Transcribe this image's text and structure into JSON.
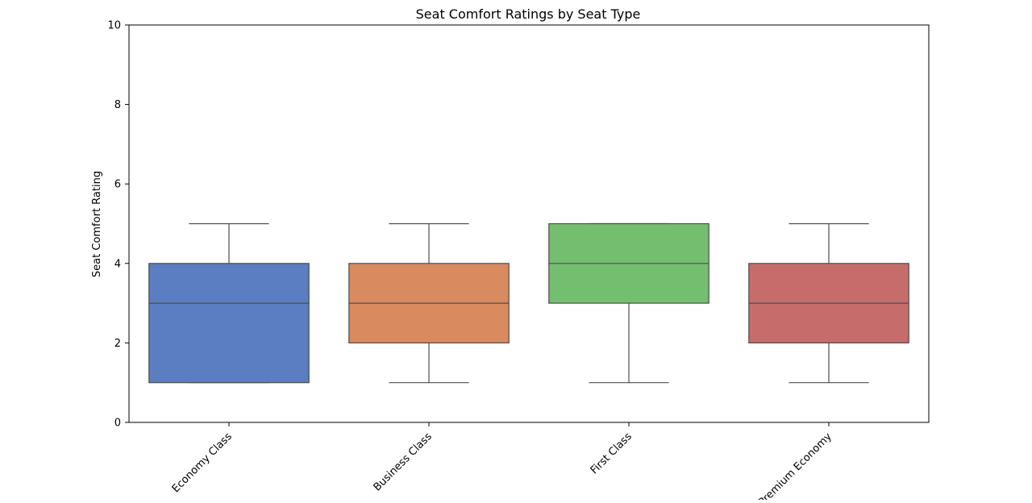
{
  "chart_data": {
    "type": "box",
    "title": "Seat Comfort Ratings by Seat Type",
    "xlabel": "",
    "ylabel": "Seat Comfort Rating",
    "ylim": [
      0,
      10
    ],
    "yticks": [
      0,
      2,
      4,
      6,
      8,
      10
    ],
    "grid": false,
    "categories": [
      "Economy Class",
      "Business Class",
      "First Class",
      "Premium Economy"
    ],
    "boxes": [
      {
        "category": "Economy Class",
        "whisker_low": 1,
        "q1": 1,
        "median": 3,
        "q3": 4,
        "whisker_high": 5,
        "color": "#5a7ec1"
      },
      {
        "category": "Business Class",
        "whisker_low": 1,
        "q1": 2,
        "median": 3,
        "q3": 4,
        "whisker_high": 5,
        "color": "#d98a5e"
      },
      {
        "category": "First Class",
        "whisker_low": 1,
        "q1": 3,
        "median": 4,
        "q3": 5,
        "whisker_high": 5,
        "color": "#74bf6f"
      },
      {
        "category": "Premium Economy",
        "whisker_low": 1,
        "q1": 2,
        "median": 3,
        "q3": 4,
        "whisker_high": 5,
        "color": "#c66d6c"
      }
    ]
  }
}
